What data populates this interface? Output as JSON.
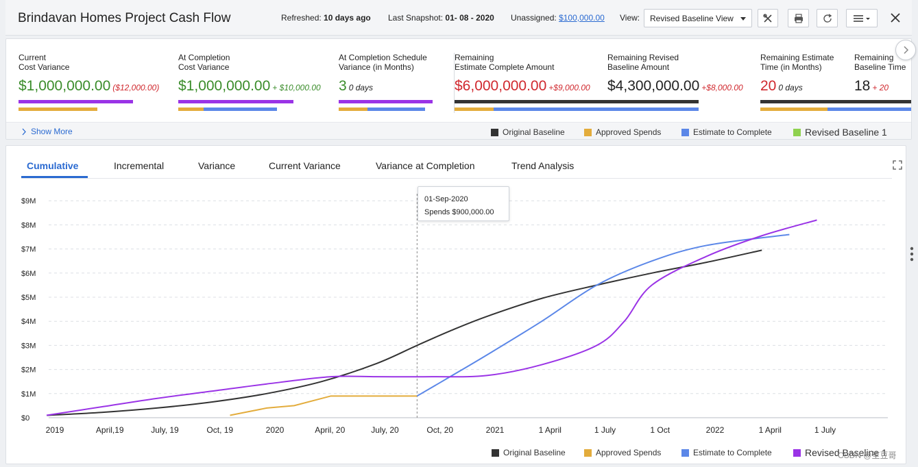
{
  "header": {
    "title": "Brindavan Homes Project Cash Flow",
    "refreshed_label": "Refreshed:",
    "refreshed_value": "10 days ago",
    "snapshot_label": "Last Snapshot:",
    "snapshot_value": "01- 08 - 2020",
    "unassigned_label": "Unassigned:",
    "unassigned_value": "$100,000.00",
    "view_label": "View:",
    "view_value": "Revised Baseline View",
    "icons": [
      "tools-icon",
      "print-icon",
      "refresh-icon",
      "menu-icon",
      "close-icon"
    ]
  },
  "kpis": [
    {
      "label1": "Current",
      "label2": "Cost Variance",
      "value": "$1,000,000.00",
      "delta": "($12,000.00)",
      "value_color": "green",
      "delta_color": "red"
    },
    {
      "label1": "At Completion",
      "label2": "Cost Variance",
      "value": "$1,000,000.00",
      "delta": "+ $10,000.00",
      "value_color": "green",
      "delta_color": "green"
    },
    {
      "label1": "At Completion Schedule",
      "label2": "Variance (in Months)",
      "value": "3",
      "delta": "0 days",
      "value_color": "green",
      "delta_color": "dark"
    },
    {
      "label1": "Remaining",
      "label2": "Estimate Complete Amount",
      "value": "$6,000,000.00",
      "delta": "+$9,000.00",
      "value_color": "red",
      "delta_color": "red"
    },
    {
      "label1": "Remaining Revised",
      "label2": "Baseline Amount",
      "value": "$4,300,000.00",
      "delta": "+$8,000.00",
      "value_color": "dark",
      "delta_color": "red"
    },
    {
      "label1": "Remaining Estimate",
      "label2": "Time (in Months)",
      "value": "20",
      "delta": "0 days",
      "value_color": "red",
      "delta_color": "dark"
    },
    {
      "label1": "Remaining",
      "label2": "Baseline Time",
      "value": "18",
      "delta": "+ 20",
      "value_color": "dark",
      "delta_color": "red"
    }
  ],
  "show_more": "Show More",
  "kpi_legend": [
    "Original Baseline",
    "Approved Spends",
    "Estimate to Complete",
    "Revised Baseline 1"
  ],
  "tabs": [
    "Cumulative",
    "Incremental",
    "Variance",
    "Current Variance",
    "Variance at Completion",
    "Trend Analysis"
  ],
  "active_tab": "Cumulative",
  "tooltip": {
    "date": "01-Sep-2020",
    "label": "Spends",
    "value": "$900,000.00"
  },
  "chart_legend": [
    "Original Baseline",
    "Approved Spends",
    "Estimate to Complete",
    "Revised Baseline 1"
  ],
  "watermark": "CSDN @笙豆哥",
  "colors": {
    "original": "#333333",
    "approved": "#e3ac3c",
    "estimate": "#5b87e8",
    "revised": "#9a33e6",
    "revised_kpi_legend": "#8fd14f",
    "accent": "#2a6ad1"
  },
  "chart_data": {
    "type": "line",
    "title": "",
    "xlabel": "",
    "ylabel": "",
    "x_ticks": [
      "2019",
      "April,19",
      "July, 19",
      "Oct, 19",
      "2020",
      "April, 20",
      "July, 20",
      "Oct, 20",
      "2021",
      "1 April",
      "1 July",
      "1 Oct",
      "2022",
      "1 April",
      "1 July"
    ],
    "x_tick_months": [
      0,
      3,
      6,
      9,
      12,
      15,
      18,
      21,
      24,
      27,
      30,
      33,
      36,
      39,
      42
    ],
    "y_ticks": [
      "$0",
      "$1M",
      "$2M",
      "$3M",
      "$4M",
      "$5M",
      "$6M",
      "$7M",
      "$8M",
      "$9M"
    ],
    "ylim": [
      0,
      9
    ],
    "y_unit": "millions USD",
    "x_unit": "months since Jan 2019",
    "marker_month": 20.2,
    "series": [
      {
        "name": "Original Baseline",
        "color": "#333333",
        "points": [
          [
            0,
            0.1
          ],
          [
            3,
            0.22
          ],
          [
            6,
            0.4
          ],
          [
            9,
            0.65
          ],
          [
            12,
            1.0
          ],
          [
            15,
            1.5
          ],
          [
            18,
            2.25
          ],
          [
            20.2,
            3.0
          ],
          [
            22,
            3.6
          ],
          [
            24,
            4.2
          ],
          [
            27,
            4.95
          ],
          [
            30,
            5.5
          ],
          [
            33,
            6.0
          ],
          [
            36,
            6.45
          ],
          [
            39,
            6.95
          ]
        ]
      },
      {
        "name": "Approved Spends",
        "color": "#e3ac3c",
        "points": [
          [
            10,
            0.1
          ],
          [
            12,
            0.4
          ],
          [
            13.5,
            0.5
          ],
          [
            15.5,
            0.9
          ],
          [
            20.2,
            0.9
          ]
        ]
      },
      {
        "name": "Estimate to Complete",
        "color": "#5b87e8",
        "points": [
          [
            20.2,
            0.9
          ],
          [
            22,
            1.7
          ],
          [
            24,
            2.6
          ],
          [
            27,
            4.0
          ],
          [
            30,
            5.5
          ],
          [
            33,
            6.5
          ],
          [
            36,
            7.15
          ],
          [
            40.5,
            7.6
          ]
        ]
      },
      {
        "name": "Revised Baseline 1",
        "color": "#9a33e6",
        "points": [
          [
            0,
            0.1
          ],
          [
            3,
            0.45
          ],
          [
            6,
            0.8
          ],
          [
            9,
            1.1
          ],
          [
            12,
            1.4
          ],
          [
            15.5,
            1.7
          ],
          [
            18,
            1.7
          ],
          [
            21,
            1.7
          ],
          [
            24,
            1.75
          ],
          [
            27,
            2.2
          ],
          [
            30,
            3.0
          ],
          [
            31.5,
            4.0
          ],
          [
            33,
            5.5
          ],
          [
            36,
            6.7
          ],
          [
            39,
            7.55
          ],
          [
            42,
            8.2
          ]
        ]
      }
    ]
  }
}
